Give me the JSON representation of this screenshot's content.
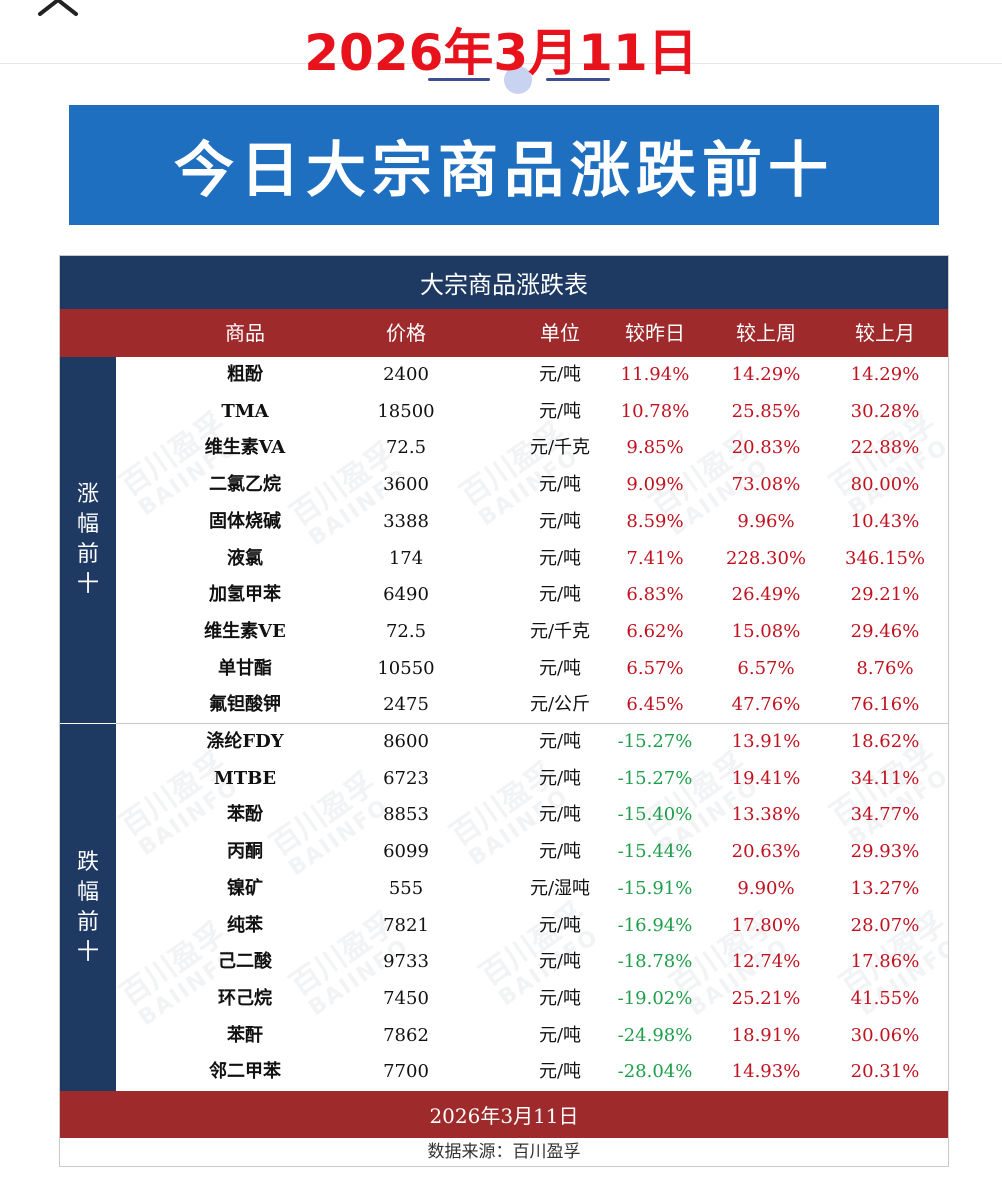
{
  "top_date": "2026年3月11日",
  "banner_title": "今日大宗商品涨跌前十",
  "table": {
    "title": "大宗商品涨跌表",
    "headers": [
      "商品",
      "价格",
      "单位",
      "较昨日",
      "较上周",
      "较上月"
    ],
    "up_label": [
      "涨",
      "幅",
      "前",
      "十"
    ],
    "down_label": [
      "跌",
      "幅",
      "前",
      "十"
    ],
    "rows_up": [
      {
        "name": "粗酚",
        "price": "2400",
        "unit": "元/吨",
        "day": "11.94%",
        "week": "14.29%",
        "month": "14.29%"
      },
      {
        "name": "TMA",
        "price": "18500",
        "unit": "元/吨",
        "day": "10.78%",
        "week": "25.85%",
        "month": "30.28%"
      },
      {
        "name": "维生素VA",
        "price": "72.5",
        "unit": "元/千克",
        "day": "9.85%",
        "week": "20.83%",
        "month": "22.88%"
      },
      {
        "name": "二氯乙烷",
        "price": "3600",
        "unit": "元/吨",
        "day": "9.09%",
        "week": "73.08%",
        "month": "80.00%"
      },
      {
        "name": "固体烧碱",
        "price": "3388",
        "unit": "元/吨",
        "day": "8.59%",
        "week": "9.96%",
        "month": "10.43%"
      },
      {
        "name": "液氯",
        "price": "174",
        "unit": "元/吨",
        "day": "7.41%",
        "week": "228.30%",
        "month": "346.15%"
      },
      {
        "name": "加氢甲苯",
        "price": "6490",
        "unit": "元/吨",
        "day": "6.83%",
        "week": "26.49%",
        "month": "29.21%"
      },
      {
        "name": "维生素VE",
        "price": "72.5",
        "unit": "元/千克",
        "day": "6.62%",
        "week": "15.08%",
        "month": "29.46%"
      },
      {
        "name": "单甘酯",
        "price": "10550",
        "unit": "元/吨",
        "day": "6.57%",
        "week": "6.57%",
        "month": "8.76%"
      },
      {
        "name": "氟钽酸钾",
        "price": "2475",
        "unit": "元/公斤",
        "day": "6.45%",
        "week": "47.76%",
        "month": "76.16%"
      }
    ],
    "rows_down": [
      {
        "name": "涤纶FDY",
        "price": "8600",
        "unit": "元/吨",
        "day": "-15.27%",
        "week": "13.91%",
        "month": "18.62%"
      },
      {
        "name": "MTBE",
        "price": "6723",
        "unit": "元/吨",
        "day": "-15.27%",
        "week": "19.41%",
        "month": "34.11%"
      },
      {
        "name": "苯酚",
        "price": "8853",
        "unit": "元/吨",
        "day": "-15.40%",
        "week": "13.38%",
        "month": "34.77%"
      },
      {
        "name": "丙酮",
        "price": "6099",
        "unit": "元/吨",
        "day": "-15.44%",
        "week": "20.63%",
        "month": "29.93%"
      },
      {
        "name": "镍矿",
        "price": "555",
        "unit": "元/湿吨",
        "day": "-15.91%",
        "week": "9.90%",
        "month": "13.27%"
      },
      {
        "name": "纯苯",
        "price": "7821",
        "unit": "元/吨",
        "day": "-16.94%",
        "week": "17.80%",
        "month": "28.07%"
      },
      {
        "name": "己二酸",
        "price": "9733",
        "unit": "元/吨",
        "day": "-18.78%",
        "week": "12.74%",
        "month": "17.86%"
      },
      {
        "name": "环己烷",
        "price": "7450",
        "unit": "元/吨",
        "day": "-19.02%",
        "week": "25.21%",
        "month": "41.55%"
      },
      {
        "name": "苯酐",
        "price": "7862",
        "unit": "元/吨",
        "day": "-24.98%",
        "week": "18.91%",
        "month": "30.06%"
      },
      {
        "name": "邻二甲苯",
        "price": "7700",
        "unit": "元/吨",
        "day": "-28.04%",
        "week": "14.93%",
        "month": "20.31%"
      }
    ],
    "footer_date": "2026年3月11日",
    "source": "数据来源：百川盈孚"
  },
  "watermark": {
    "cn": "百川盈孚",
    "en": "BAIINFO"
  },
  "icons": {
    "close": "close-icon"
  },
  "colors": {
    "banner": "#1f6fc0",
    "navy": "#1e3a63",
    "red_bar": "#9e2a2b",
    "up": "#c1121f",
    "down": "#1e9e4a",
    "date_red": "#e8121c"
  }
}
